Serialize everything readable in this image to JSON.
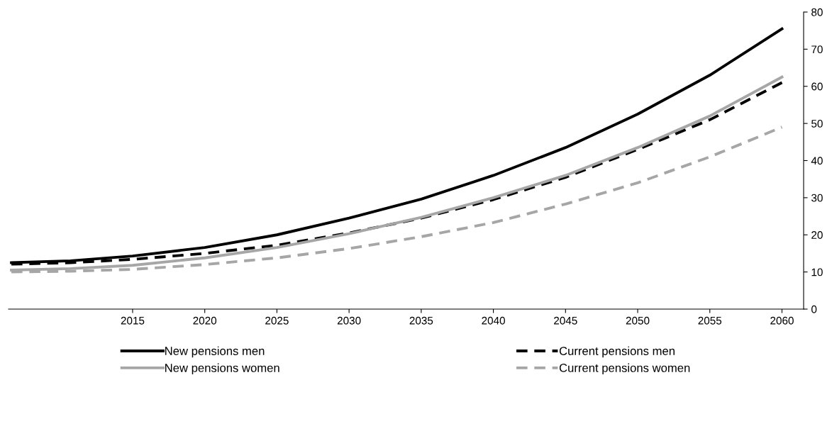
{
  "chart_data": {
    "type": "line",
    "x": [
      2006.6,
      2010.7,
      2015,
      2020,
      2025,
      2030,
      2035,
      2040,
      2045,
      2050,
      2055,
      2060
    ],
    "series": [
      {
        "name": "New pensions men",
        "color": "#000000",
        "line_style": "solid",
        "values": [
          12.5,
          13,
          14.3,
          16.6,
          20,
          24.5,
          29.6,
          36,
          43.5,
          52.5,
          63,
          75.5
        ]
      },
      {
        "name": "Current pensions men",
        "color": "#000000",
        "line_style": "dashed",
        "values": [
          12.1,
          12.5,
          13.4,
          15,
          17.2,
          20.5,
          24.5,
          29.5,
          35.5,
          43,
          51,
          61
        ]
      },
      {
        "name": "New pensions women",
        "color": "#a6a6a6",
        "line_style": "solid",
        "values": [
          10.5,
          10.9,
          11.8,
          13.8,
          16.6,
          20.3,
          24.7,
          30,
          36,
          43.5,
          52,
          62.5
        ]
      },
      {
        "name": "Current pensions women",
        "color": "#a6a6a6",
        "line_style": "dashed",
        "values": [
          10,
          10.2,
          10.7,
          12,
          13.8,
          16.3,
          19.5,
          23.3,
          28.3,
          34,
          41,
          49
        ]
      }
    ],
    "xlim": [
      2006.4,
      2061.5
    ],
    "xticks": [
      2015,
      2020,
      2025,
      2030,
      2035,
      2040,
      2045,
      2050,
      2055,
      2060
    ],
    "ylim": [
      0,
      80
    ],
    "yticks": [
      0,
      10,
      20,
      30,
      40,
      50,
      60,
      70,
      80
    ],
    "grid": false,
    "legend": "bottom",
    "marker": "none"
  }
}
